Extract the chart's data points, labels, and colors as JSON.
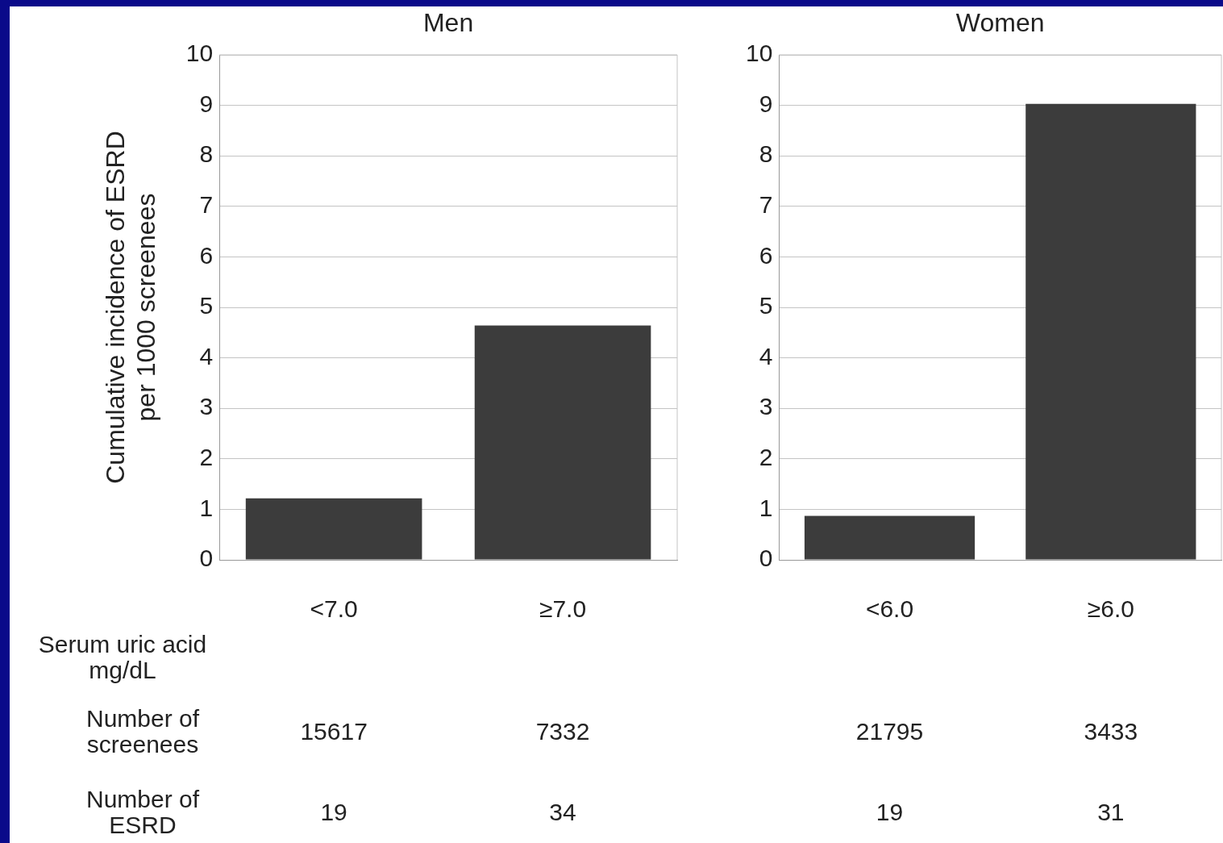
{
  "chart_data": [
    {
      "type": "bar",
      "title": "Men",
      "ylabel": "Cumulative incidence of ESRD\nper 1000 screenees",
      "xlabel": "Serum uric acid\nmg/dL",
      "categories": [
        "<7.0",
        "≥7.0"
      ],
      "values": [
        1.22,
        4.64
      ],
      "color": "#3c3c3c",
      "ylim": [
        0,
        10
      ],
      "yticks": [
        0,
        1,
        2,
        3,
        4,
        5,
        6,
        7,
        8,
        9,
        10
      ],
      "grid": "y",
      "annotations": [
        "Number of\nscreenees",
        "15617",
        "7332",
        "Number of\nESRD",
        "19",
        "34"
      ]
    },
    {
      "type": "bar",
      "title": "Women",
      "categories": [
        "<6.0",
        "≥6.0"
      ],
      "values": [
        0.87,
        9.03
      ],
      "color": "#3c3c3c",
      "ylim": [
        0,
        10
      ],
      "yticks": [
        0,
        1,
        2,
        3,
        4,
        5,
        6,
        7,
        8,
        9,
        10
      ],
      "grid": "y",
      "annotations": [
        "21795",
        "3433",
        "19",
        "31"
      ]
    }
  ]
}
